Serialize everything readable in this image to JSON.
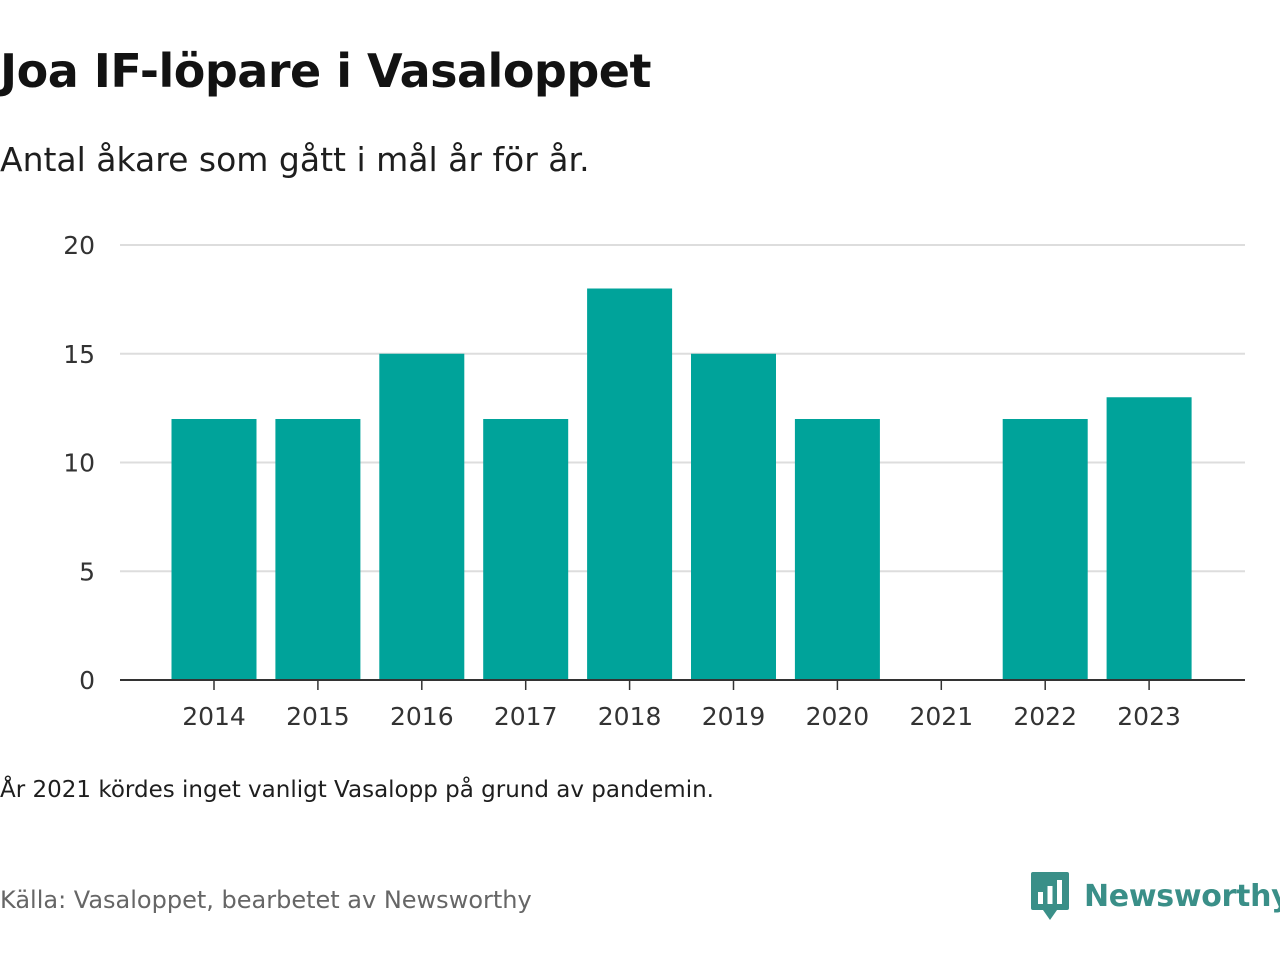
{
  "title": "Joa IF-löpare i Vasaloppet",
  "subtitle": "Antal åkare som gått i mål år för år.",
  "note": "År 2021 kördes inget vanligt Vasalopp på grund av pandemin.",
  "source": "Källa: Vasaloppet, bearbetet av Newsworthy",
  "brand": {
    "name": "Newsworthy",
    "icon": "newsworthy-logo-icon",
    "color": "#3a8f88"
  },
  "chart_data": {
    "type": "bar",
    "categories": [
      "2014",
      "2015",
      "2016",
      "2017",
      "2018",
      "2019",
      "2020",
      "2021",
      "2022",
      "2023"
    ],
    "values": [
      12,
      12,
      15,
      12,
      18,
      15,
      12,
      0,
      12,
      13
    ],
    "ylim": [
      0,
      20
    ],
    "yticks": [
      0,
      5,
      10,
      15,
      20
    ],
    "grid": true,
    "bar_color": "#00a39a",
    "grid_color": "#dddddd",
    "axis_color": "#333333"
  }
}
